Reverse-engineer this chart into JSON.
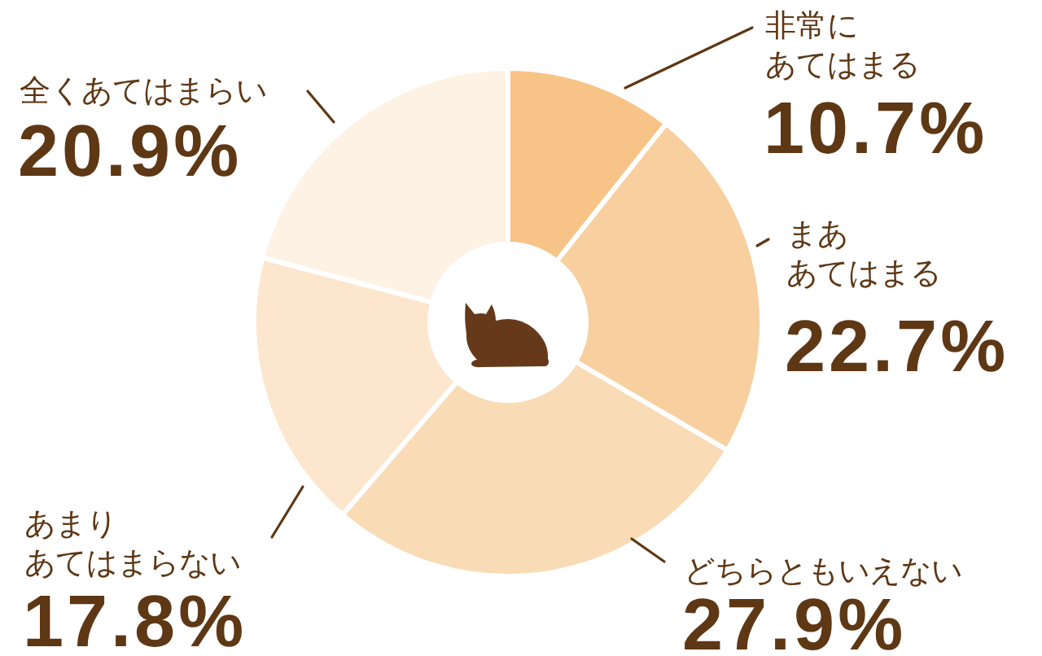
{
  "chart_data": {
    "type": "donut",
    "categories": [
      "非常にあてはまる",
      "まああてはまる",
      "どちらともいえない",
      "あまりあてはまらない",
      "全くあてはまらい"
    ],
    "values": [
      10.7,
      22.7,
      27.9,
      17.8,
      20.9
    ],
    "colors": [
      "#f8c386",
      "#f8cf9f",
      "#f9dbb6",
      "#fce6cd",
      "#fdf2e4"
    ],
    "value_labels": [
      "10.7%",
      "22.7%",
      "27.9%",
      "17.8%",
      "20.9%"
    ]
  }
}
